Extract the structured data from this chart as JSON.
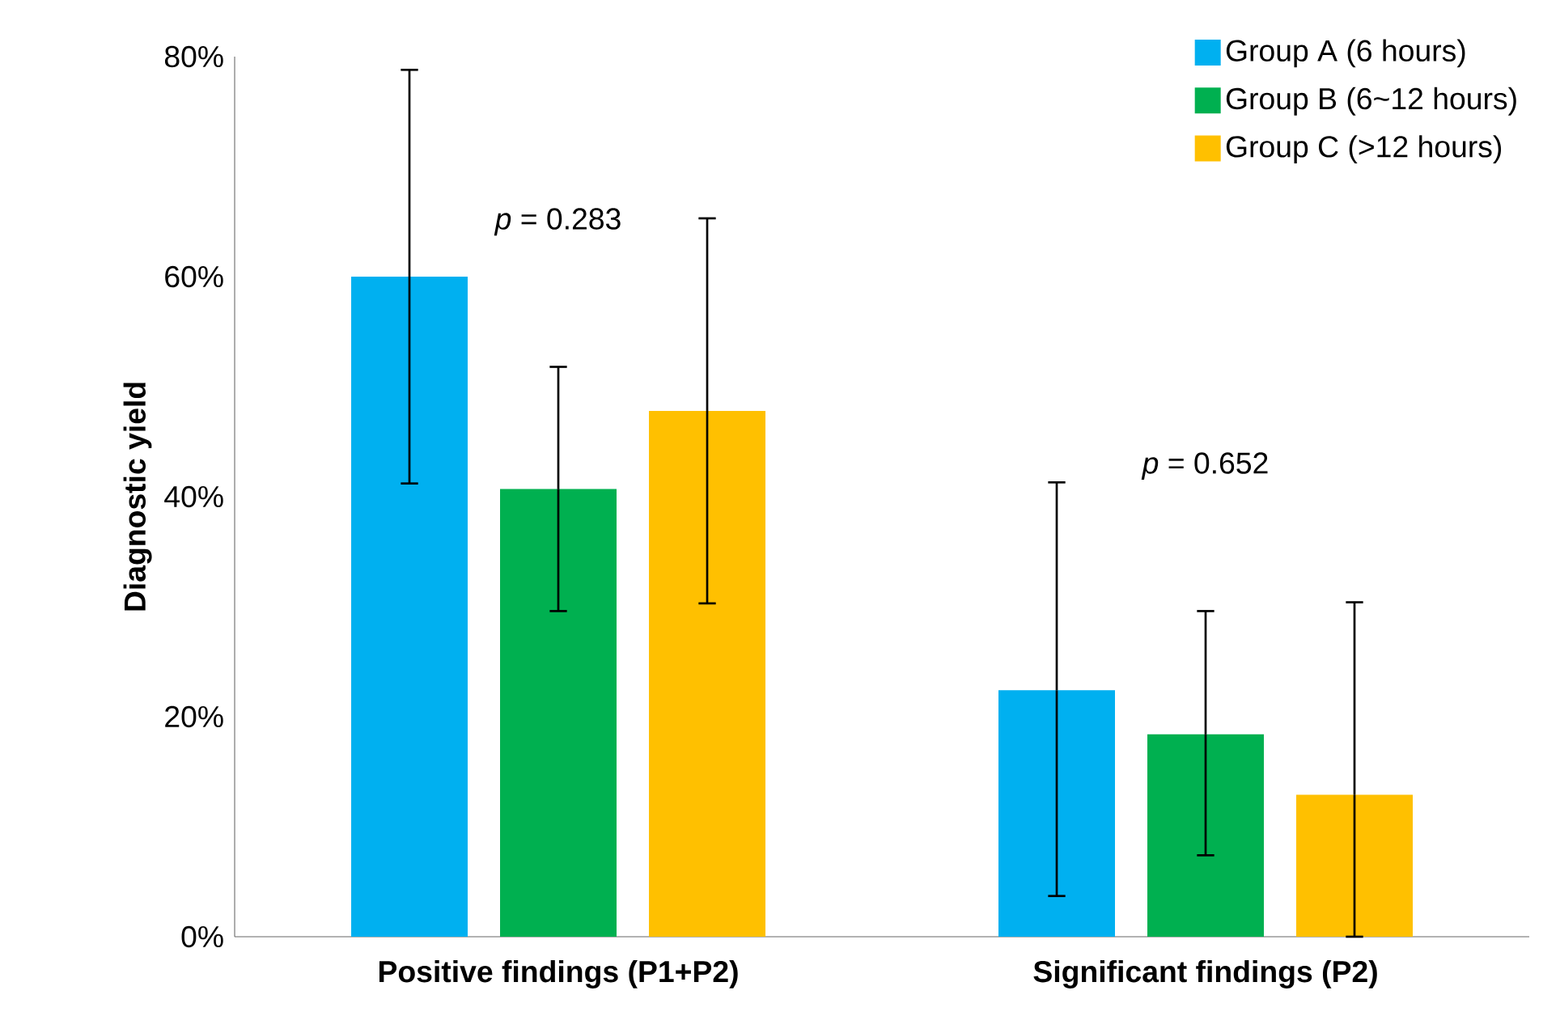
{
  "chart_data": {
    "type": "bar",
    "ylabel": "Diagnostic yield",
    "categories": [
      "Positive findings (P1+P2)",
      "Significant findings (P2)"
    ],
    "series": [
      {
        "name": "Group A (6 hours)",
        "color": "#00b0f0",
        "values": [
          60,
          22.4
        ],
        "errors": [
          [
            41.2,
            78.8
          ],
          [
            3.7,
            41.3
          ]
        ]
      },
      {
        "name": "Group B (6~12 hours)",
        "color": "#00b050",
        "values": [
          40.7,
          18.4
        ],
        "errors": [
          [
            29.6,
            51.8
          ],
          [
            7.4,
            29.6
          ]
        ]
      },
      {
        "name": "Group C (>12 hours)",
        "color": "#ffc000",
        "values": [
          47.8,
          12.9
        ],
        "errors": [
          [
            30.3,
            65.3
          ],
          [
            0,
            30.4
          ]
        ]
      }
    ],
    "ylim": [
      0,
      80
    ],
    "yticks": [
      {
        "value": 0,
        "label": "0%"
      },
      {
        "value": 20,
        "label": "20%"
      },
      {
        "value": 40,
        "label": "40%"
      },
      {
        "value": 60,
        "label": "60%"
      },
      {
        "value": 80,
        "label": "80%"
      }
    ],
    "annotations": [
      "*p* = 0.283",
      "*p* = 0.652"
    ],
    "grid": false,
    "legend": "top right"
  }
}
